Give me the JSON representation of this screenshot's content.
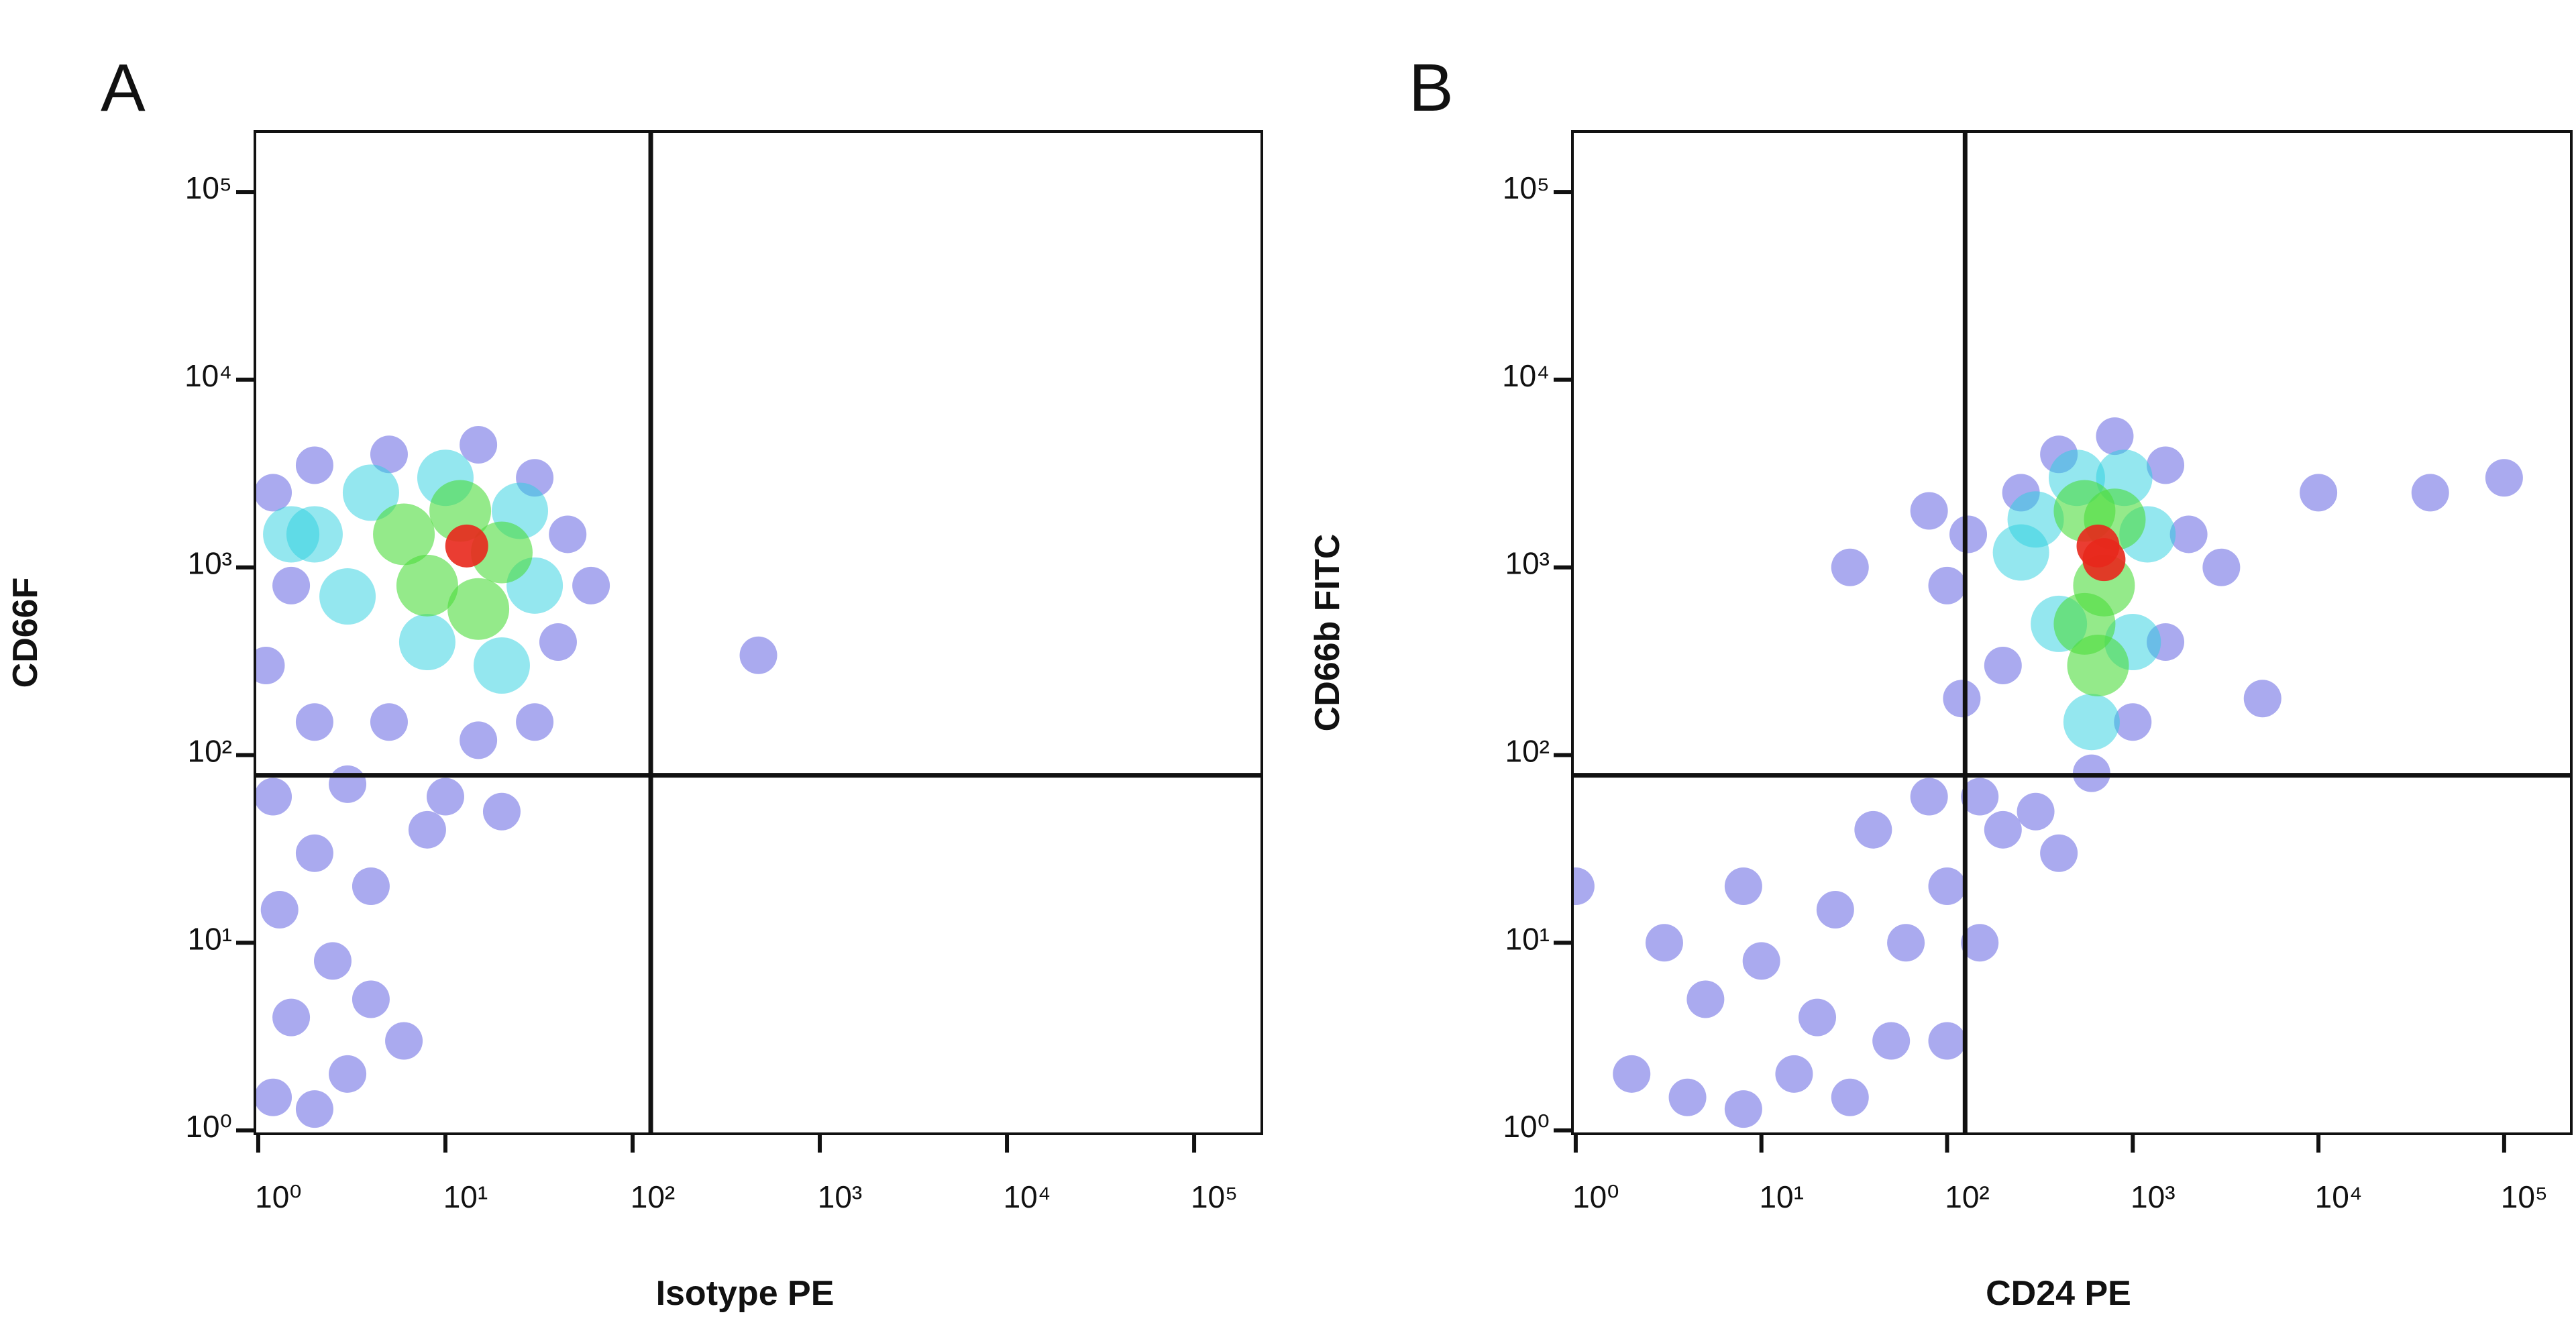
{
  "chart_data": [
    {
      "type": "scatter",
      "label": "A",
      "xlabel": "Isotype PE",
      "ylabel": "CD66F",
      "xscale": "log",
      "yscale": "log",
      "xlim": [
        0.96,
        230000
      ],
      "ylim": [
        0.96,
        210000
      ],
      "xticks": [
        {
          "value": 1,
          "label": "10⁰"
        },
        {
          "value": 10,
          "label": "10¹"
        },
        {
          "value": 100,
          "label": "10²"
        },
        {
          "value": 1000,
          "label": "10³"
        },
        {
          "value": 10000,
          "label": "10⁴"
        },
        {
          "value": 100000,
          "label": "10⁵"
        }
      ],
      "yticks": [
        {
          "value": 1,
          "label": "10⁰"
        },
        {
          "value": 10,
          "label": "10¹"
        },
        {
          "value": 100,
          "label": "10²"
        },
        {
          "value": 1000,
          "label": "10³"
        },
        {
          "value": 10000,
          "label": "10⁴"
        },
        {
          "value": 100000,
          "label": "10⁵"
        }
      ],
      "gates": {
        "x": 125,
        "y": 78
      },
      "series": [
        {
          "color": "#2a2ad8",
          "x": [
            1.2,
            2,
            3,
            1.5,
            2.5,
            1.3,
            4,
            6,
            2,
            4,
            8,
            1.2,
            3,
            10,
            20,
            1.1,
            1.2,
            2,
            5,
            15,
            30,
            45,
            40,
            30,
            15,
            5,
            2,
            60,
            1.5,
            470
          ],
          "y": [
            1.5,
            1.3,
            2,
            4,
            8,
            15,
            5,
            3,
            30,
            20,
            40,
            60,
            70,
            60,
            50,
            300,
            2500,
            3500,
            4000,
            4500,
            3000,
            1500,
            400,
            150,
            120,
            150,
            150,
            800,
            800,
            340
          ]
        },
        {
          "color": "#2ad0e0",
          "x": [
            2,
            4,
            10,
            25,
            30,
            20,
            8,
            3,
            1.5
          ],
          "y": [
            1500,
            2500,
            3000,
            2000,
            800,
            300,
            400,
            700,
            1500
          ]
        },
        {
          "color": "#4cdc3c",
          "x": [
            6,
            12,
            20,
            15,
            8
          ],
          "y": [
            1500,
            2000,
            1200,
            600,
            800
          ]
        },
        {
          "color": "#e8281c",
          "x": [
            13
          ],
          "y": [
            1300
          ]
        }
      ]
    },
    {
      "type": "scatter",
      "label": "B",
      "xlabel": "CD24 PE",
      "ylabel": "CD66b FITC",
      "xscale": "log",
      "yscale": "log",
      "xlim": [
        0.96,
        230000
      ],
      "ylim": [
        0.96,
        210000
      ],
      "xticks": [
        {
          "value": 1,
          "label": "10⁰"
        },
        {
          "value": 10,
          "label": "10¹"
        },
        {
          "value": 100,
          "label": "10²"
        },
        {
          "value": 1000,
          "label": "10³"
        },
        {
          "value": 10000,
          "label": "10⁴"
        },
        {
          "value": 100000,
          "label": "10⁵"
        }
      ],
      "yticks": [
        {
          "value": 1,
          "label": "10⁰"
        },
        {
          "value": 10,
          "label": "10¹"
        },
        {
          "value": 100,
          "label": "10²"
        },
        {
          "value": 1000,
          "label": "10³"
        },
        {
          "value": 10000,
          "label": "10⁴"
        },
        {
          "value": 100000,
          "label": "10⁵"
        }
      ],
      "gates": {
        "x": 125,
        "y": 78
      },
      "series": [
        {
          "color": "#2a2ad8",
          "x": [
            2,
            4,
            8,
            15,
            30,
            5,
            10,
            20,
            50,
            3,
            8,
            25,
            60,
            100,
            40,
            80,
            120,
            100,
            130,
            150,
            200,
            300,
            400,
            250,
            400,
            800,
            1500,
            2000,
            1500,
            1000,
            600,
            3000,
            10000,
            40000,
            100000,
            5000,
            100,
            150,
            1,
            200,
            80,
            30
          ],
          "y": [
            2,
            1.5,
            1.3,
            2,
            1.5,
            5,
            8,
            4,
            3,
            10,
            20,
            15,
            10,
            20,
            40,
            60,
            200,
            800,
            1500,
            60,
            40,
            50,
            30,
            2500,
            4000,
            5000,
            3500,
            1500,
            400,
            150,
            80,
            1000,
            2500,
            2500,
            3000,
            200,
            3,
            10,
            20,
            300,
            2000,
            1000
          ]
        },
        {
          "color": "#2ad0e0",
          "x": [
            300,
            500,
            900,
            1200,
            1000,
            600,
            400,
            250
          ],
          "y": [
            1800,
            3000,
            3000,
            1500,
            400,
            150,
            500,
            1200
          ]
        },
        {
          "color": "#4cdc3c",
          "x": [
            550,
            800,
            700,
            550,
            650
          ],
          "y": [
            2000,
            1800,
            800,
            500,
            300
          ]
        },
        {
          "color": "#e8281c",
          "x": [
            650,
            700
          ],
          "y": [
            1300,
            1100
          ]
        }
      ]
    }
  ]
}
